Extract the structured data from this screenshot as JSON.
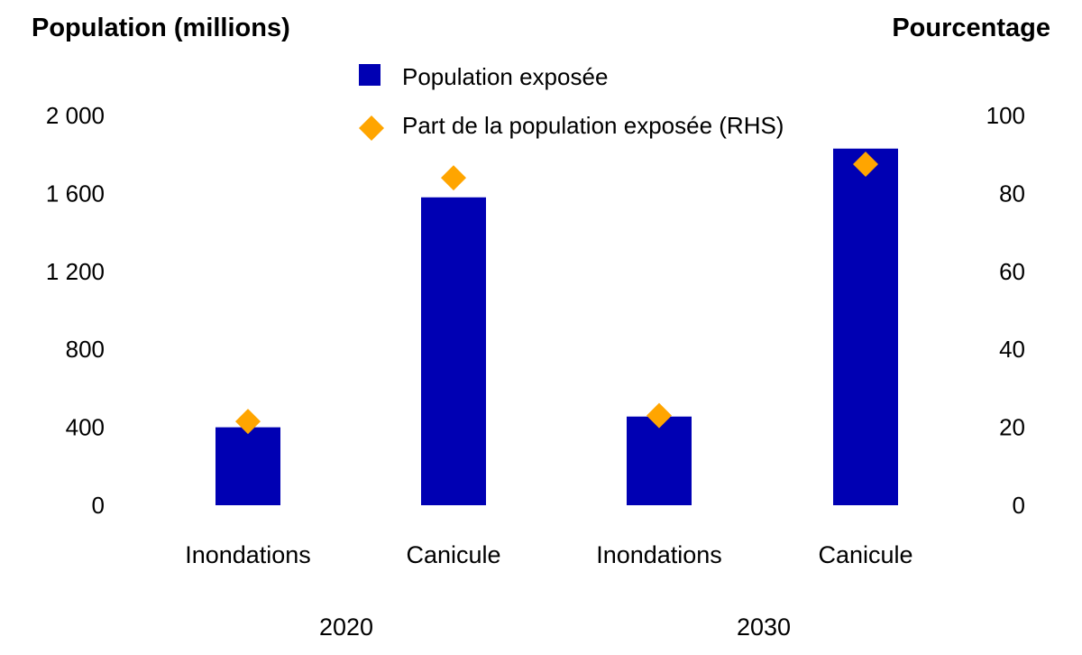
{
  "chart_data": {
    "type": "bar",
    "left_axis_title": "Population (millions)",
    "right_axis_title": "Pourcentage",
    "left_ylim": [
      0,
      2000
    ],
    "left_ticks": [
      0,
      400,
      800,
      1200,
      1600,
      2000
    ],
    "left_tick_labels": [
      "0",
      "400",
      "800",
      "1 200",
      "1 600",
      "2 000"
    ],
    "right_ylim": [
      0,
      100
    ],
    "right_ticks": [
      0,
      20,
      40,
      60,
      80,
      100
    ],
    "right_tick_labels": [
      "0",
      "20",
      "40",
      "60",
      "80",
      "100"
    ],
    "groups": [
      {
        "label": "2020",
        "categories": [
          "Inondations",
          "Canicule"
        ]
      },
      {
        "label": "2030",
        "categories": [
          "Inondations",
          "Canicule"
        ]
      }
    ],
    "series": [
      {
        "name": "Population exposée",
        "type": "bar",
        "axis": "left",
        "color": "#0000b3",
        "values": [
          400,
          1580,
          455,
          1830
        ]
      },
      {
        "name": "Part de la population exposée (RHS)",
        "type": "scatter",
        "marker": "diamond",
        "axis": "right",
        "color": "#ffa500",
        "values": [
          21.5,
          84,
          23,
          87.5
        ]
      }
    ],
    "legend_position": "top-center",
    "grid": false
  }
}
